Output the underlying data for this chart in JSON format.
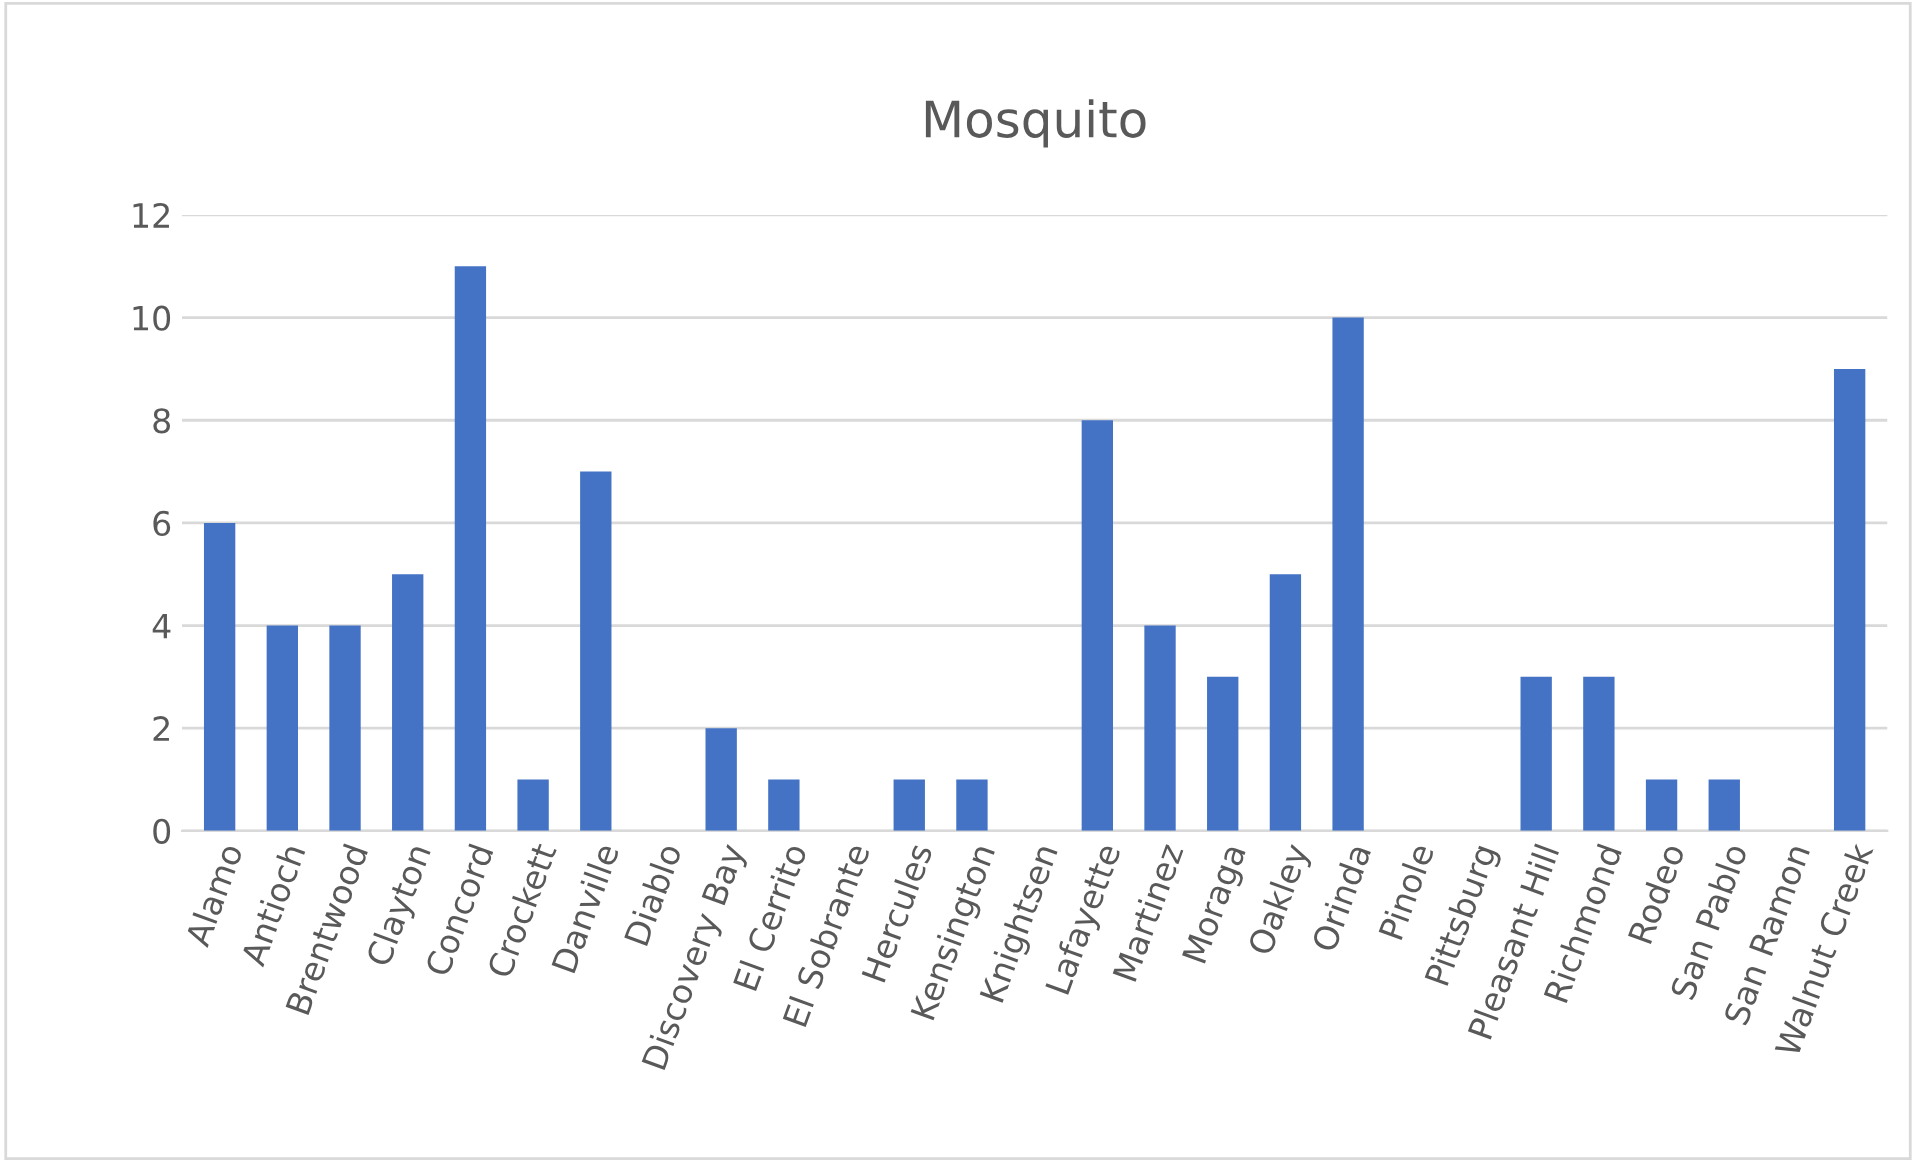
{
  "chart_data": {
    "type": "bar",
    "title": "Mosquito",
    "categories": [
      "Alamo",
      "Antioch",
      "Brentwood",
      "Clayton",
      "Concord",
      "Crockett",
      "Danville",
      "Diablo",
      "Discovery Bay",
      "El Cerrito",
      "El Sobrante",
      "Hercules",
      "Kensington",
      "Knightsen",
      "Lafayette",
      "Martinez",
      "Moraga",
      "Oakley",
      "Orinda",
      "Pinole",
      "Pittsburg",
      "Pleasant Hill",
      "Richmond",
      "Rodeo",
      "San Pablo",
      "San Ramon",
      "Walnut Creek"
    ],
    "values": [
      6,
      4,
      4,
      5,
      11,
      1,
      7,
      0,
      2,
      1,
      0,
      1,
      1,
      0,
      8,
      4,
      3,
      5,
      10,
      0,
      0,
      3,
      3,
      1,
      1,
      0,
      9
    ],
    "color": "#4472c4",
    "ylim": [
      0,
      12
    ],
    "yticks": [
      0,
      2,
      4,
      6,
      8,
      10,
      12
    ],
    "grid": "y"
  }
}
